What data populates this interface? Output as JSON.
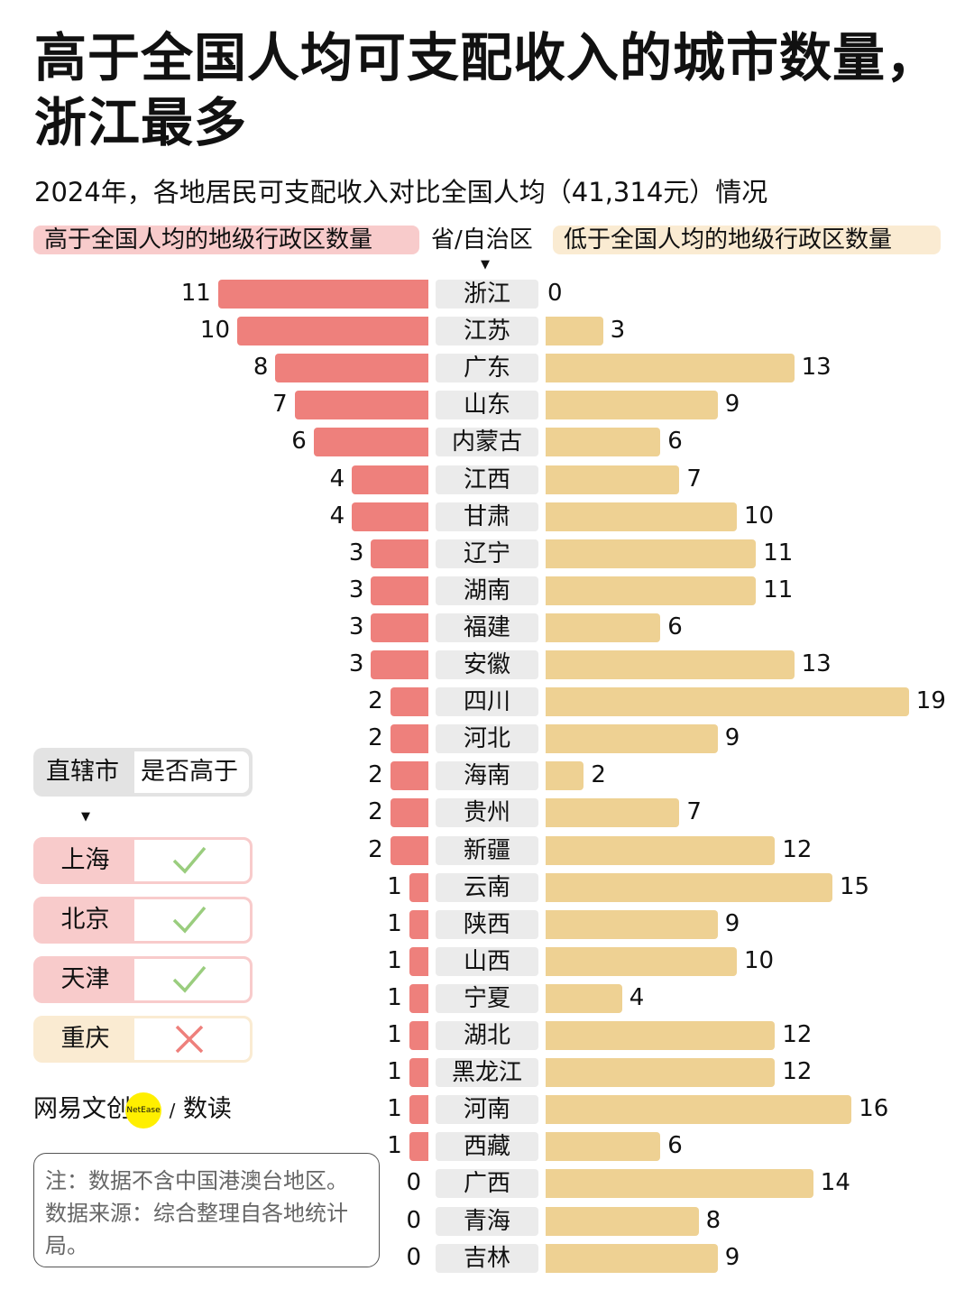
{
  "title": "高于全国人均可支配收入的城市数量，浙江最多",
  "subtitle": "2024年，各地居民可支配收入对比全国人均（41,314元）情况",
  "chart_data": {
    "type": "bar",
    "legend": {
      "above": "高于全国人均的地级行政区数量",
      "category": "省/自治区",
      "below": "低于全国人均的地级行政区数量"
    },
    "colors": {
      "above": "#EE807C",
      "below": "#EED193",
      "label_bg": "#EBEBEB"
    },
    "categories": [
      "浙江",
      "江苏",
      "广东",
      "山东",
      "内蒙古",
      "江西",
      "甘肃",
      "辽宁",
      "湖南",
      "福建",
      "安徽",
      "四川",
      "河北",
      "海南",
      "贵州",
      "新疆",
      "云南",
      "陕西",
      "山西",
      "宁夏",
      "湖北",
      "黑龙江",
      "河南",
      "西藏",
      "广西",
      "青海",
      "吉林"
    ],
    "series": [
      {
        "name": "高于全国人均的地级行政区数量",
        "values": [
          11,
          10,
          8,
          7,
          6,
          4,
          4,
          3,
          3,
          3,
          3,
          2,
          2,
          2,
          2,
          2,
          1,
          1,
          1,
          1,
          1,
          1,
          1,
          1,
          0,
          0,
          0
        ]
      },
      {
        "name": "低于全国人均的地级行政区数量",
        "values": [
          0,
          3,
          13,
          9,
          6,
          7,
          10,
          11,
          11,
          6,
          13,
          19,
          9,
          2,
          7,
          12,
          15,
          9,
          10,
          4,
          12,
          12,
          16,
          6,
          14,
          8,
          9
        ]
      }
    ]
  },
  "municipalities": {
    "header": {
      "col1": "直辖市",
      "col2": "是否高于"
    },
    "rows": [
      {
        "name": "上海",
        "above": true,
        "icon": "check-icon"
      },
      {
        "name": "北京",
        "above": true,
        "icon": "check-icon"
      },
      {
        "name": "天津",
        "above": true,
        "icon": "check-icon"
      },
      {
        "name": "重庆",
        "above": false,
        "icon": "cross-icon"
      }
    ],
    "colors": {
      "above": "#F8CBCB",
      "below": "#FAEBD2",
      "check": "#9ACD7E",
      "cross": "#EE807C"
    }
  },
  "logo": {
    "brand": "网易文创",
    "badge": "NetEase",
    "sep": "/",
    "section": "数读"
  },
  "note": "注：数据不含中国港澳台地区。数据来源：综合整理自各地统计局。"
}
